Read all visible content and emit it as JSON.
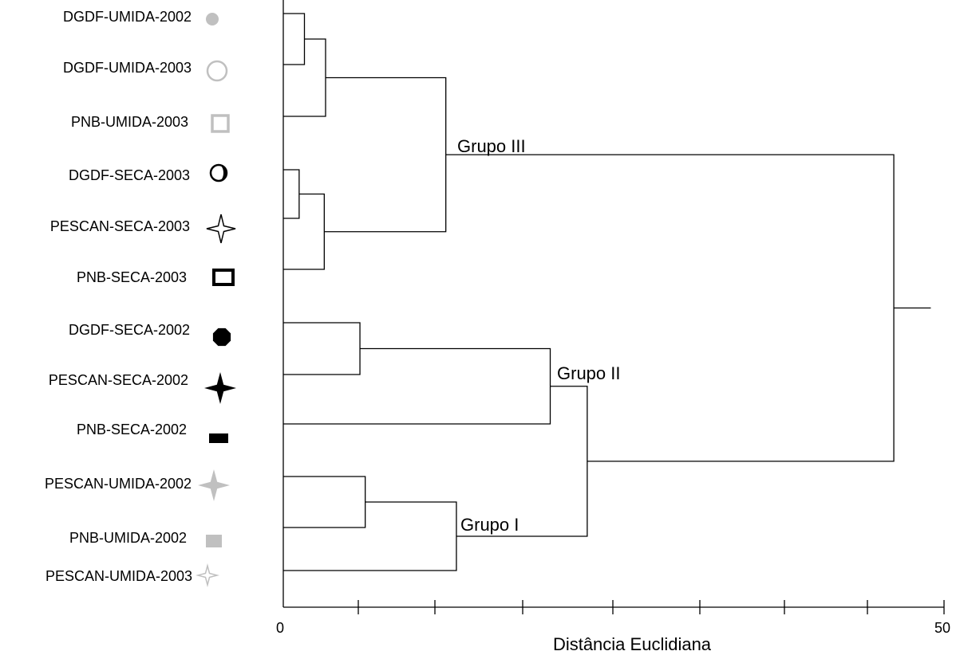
{
  "chart_data": {
    "type": "dendrogram",
    "xlabel": "Distância Euclidiana",
    "xlim": [
      0,
      50
    ],
    "x_tick_labels": [
      "0",
      "50"
    ],
    "leaves": [
      {
        "label": "DGDF-UMIDA-2002",
        "marker": "filled-circle",
        "color": "#c0c0c0"
      },
      {
        "label": "DGDF-UMIDA-2003",
        "marker": "hollow-circle",
        "color": "#c0c0c0"
      },
      {
        "label": "PNB-UMIDA-2003",
        "marker": "hollow-square",
        "color": "#c0c0c0"
      },
      {
        "label": "DGDF-SECA-2003",
        "marker": "crescent-circle",
        "color": "#000000"
      },
      {
        "label": "PESCAN-SECA-2003",
        "marker": "hollow-star",
        "color": "#000000"
      },
      {
        "label": "PNB-SECA-2003",
        "marker": "hollow-square",
        "color": "#000000"
      },
      {
        "label": "DGDF-SECA-2002",
        "marker": "filled-octagon",
        "color": "#000000"
      },
      {
        "label": "PESCAN-SECA-2002",
        "marker": "filled-star",
        "color": "#000000"
      },
      {
        "label": "PNB-SECA-2002",
        "marker": "filled-rect",
        "color": "#000000"
      },
      {
        "label": "PESCAN-UMIDA-2002",
        "marker": "filled-star",
        "color": "#c0c0c0"
      },
      {
        "label": "PNB-UMIDA-2002",
        "marker": "filled-rect",
        "color": "#c0c0c0"
      },
      {
        "label": "PESCAN-UMIDA-2003",
        "marker": "hollow-star",
        "color": "#c0c0c0"
      }
    ],
    "merges": [
      {
        "a": "L0",
        "b": "L1",
        "height": 1.6
      },
      {
        "a": "N0",
        "b": "L2",
        "height": 3.2
      },
      {
        "a": "L3",
        "b": "L4",
        "height": 1.2
      },
      {
        "a": "N2",
        "b": "L5",
        "height": 3.1
      },
      {
        "a": "N1",
        "b": "N3",
        "height": 12.3
      },
      {
        "a": "L6",
        "b": "L7",
        "height": 5.8
      },
      {
        "a": "N5",
        "b": "L8",
        "height": 20.2
      },
      {
        "a": "L9",
        "b": "L10",
        "height": 6.2
      },
      {
        "a": "N7",
        "b": "L11",
        "height": 13.1
      },
      {
        "a": "N6",
        "b": "N8",
        "height": 23.0
      },
      {
        "a": "N4",
        "b": "N9",
        "height": 46.2
      }
    ],
    "root_height": 49.0,
    "group_labels": [
      {
        "text": "Grupo III",
        "node": "N4"
      },
      {
        "text": "Grupo II",
        "node": "N6"
      },
      {
        "text": "Grupo I",
        "node": "N8"
      }
    ]
  }
}
